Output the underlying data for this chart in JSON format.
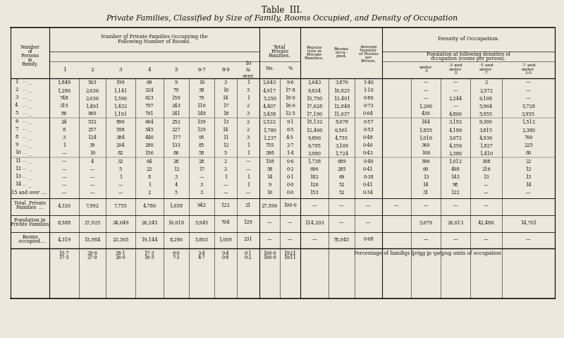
{
  "title1": "Table  III.",
  "title2": "Private Families, Classified by Size of Family, Rooms Occupied, and Density of Occupation",
  "bg_color": "#ede8dc",
  "data_rows": [
    [
      "1",
      "1,849",
      "503",
      "199",
      "69",
      "9",
      "10",
      "3",
      "1",
      "2,643",
      "9·6",
      "2,643",
      "3,870",
      "1·46",
      "—",
      "—",
      "2",
      "—"
    ],
    [
      "2",
      "1,286",
      "2,036",
      "1,141",
      "324",
      "79",
      "38",
      "10",
      "3",
      "4,917",
      "17·8",
      "9,834",
      "10,825",
      "1·10",
      "—",
      "—",
      "2,572",
      "—"
    ],
    [
      "3",
      "748",
      "2,036",
      "1,590",
      "623",
      "159",
      "79",
      "14",
      "1",
      "5,250",
      "19·0",
      "15,750",
      "13,491",
      "0·86",
      "—",
      "2,244",
      "6,108",
      "—"
    ],
    [
      "4",
      "315",
      "1,491",
      "1,432",
      "797",
      "243",
      "110",
      "17",
      "2",
      "4,407",
      "16·0",
      "17,628",
      "12,848",
      "0·73",
      "1,260",
      "—",
      "5,964",
      "5,728"
    ],
    [
      "5",
      "86",
      "960",
      "1,191",
      "791",
      "241",
      "148",
      "18",
      "3",
      "3,438",
      "12·5",
      "17,190",
      "11,037",
      "0·64",
      "430",
      "4,800",
      "5,955",
      "3,955"
    ],
    [
      "6",
      "24",
      "532",
      "896",
      "664",
      "252",
      "139",
      "13",
      "2",
      "2,522",
      "9·1",
      "15,132",
      "8,678",
      "0·57",
      "144",
      "3,192",
      "9,360",
      "1,512"
    ],
    [
      "7",
      "8",
      "257",
      "598",
      "545",
      "227",
      "129",
      "14",
      "2",
      "1,780",
      "6·5",
      "12,460",
      "6,561",
      "0·53",
      "1,855",
      "4,186",
      "3,815",
      "2,380"
    ],
    [
      "8",
      "3",
      "124",
      "384",
      "440",
      "177",
      "95",
      "11",
      "3",
      "1,237",
      "4·5",
      "9,896",
      "4,755",
      "0·48",
      "1,016",
      "3,072",
      "4,936",
      "760"
    ],
    [
      "9",
      "1",
      "39",
      "204",
      "280",
      "133",
      "85",
      "12",
      "1",
      "755",
      "2·7",
      "6,795",
      "3,109",
      "0·46",
      "360",
      "4,356",
      "1,827",
      "225"
    ],
    [
      "10",
      "—",
      "10",
      "82",
      "156",
      "86",
      "58",
      "5",
      "1",
      "398",
      "1·4",
      "3,980",
      "1,724",
      "0·43",
      "100",
      "2,380",
      "1,410",
      "80"
    ],
    [
      "11",
      "—",
      "4",
      "32",
      "64",
      "28",
      "28",
      "2",
      "—",
      "158",
      "0·6",
      "1,738",
      "689",
      "0·40",
      "396",
      "1,012",
      "308",
      "22"
    ],
    [
      "12",
      "—",
      "—",
      "5",
      "22",
      "12",
      "17",
      "2",
      "—",
      "58",
      "0·2",
      "696",
      "285",
      "0·41",
      "60",
      "408",
      "216",
      "12"
    ],
    [
      "13",
      "—",
      "—",
      "1",
      "8",
      "3",
      "—",
      "1",
      "1",
      "14",
      "0·1",
      "182",
      "69",
      "0·38",
      "13",
      "143",
      "13",
      "13"
    ],
    [
      "14",
      "—",
      "—",
      "—",
      "1",
      "4",
      "3",
      "—",
      "1",
      "9",
      "0·0",
      "126",
      "52",
      "0·41",
      "14",
      "98",
      "—",
      "14"
    ],
    [
      "15 and over",
      "—",
      "—",
      "—",
      "2",
      "5",
      "3",
      "—",
      "—",
      "10",
      "0·0",
      "153",
      "52",
      "0·34",
      "31",
      "122",
      "—",
      "—"
    ]
  ],
  "total_private": [
    "4,320",
    "7,992",
    "7,755",
    "4,786",
    "1,658",
    "942",
    "122",
    "21",
    "27,596",
    "100·0",
    "—",
    "—",
    "—",
    "—",
    "—",
    "—",
    "—"
  ],
  "pop_private": [
    "8,588",
    "27,925",
    "34,649",
    "26,245",
    "10,018",
    "5,945",
    "704",
    "129",
    "—",
    "—",
    "114,203",
    "—",
    "—",
    "5,679",
    "26,013",
    "42,486",
    "14,701"
  ],
  "rooms_occ": [
    "4,319",
    "15,984",
    "23,365",
    "19,144",
    "8,290",
    "5,803",
    "1,009",
    "231",
    "—",
    "—",
    "—",
    "78,045",
    "0·68",
    "—",
    "—",
    "—",
    "—"
  ],
  "pct_1921": [
    "15·7",
    "29·0",
    "28·1",
    "17·3",
    "6·0",
    "3·4",
    "0·4",
    "0·1",
    "100·0",
    "1921"
  ],
  "pct_1911": [
    "17·5",
    "27·0",
    "26·0",
    "16·5",
    "7·3",
    "4·7",
    "0·8",
    "0·2",
    "100·0",
    "1911"
  ]
}
